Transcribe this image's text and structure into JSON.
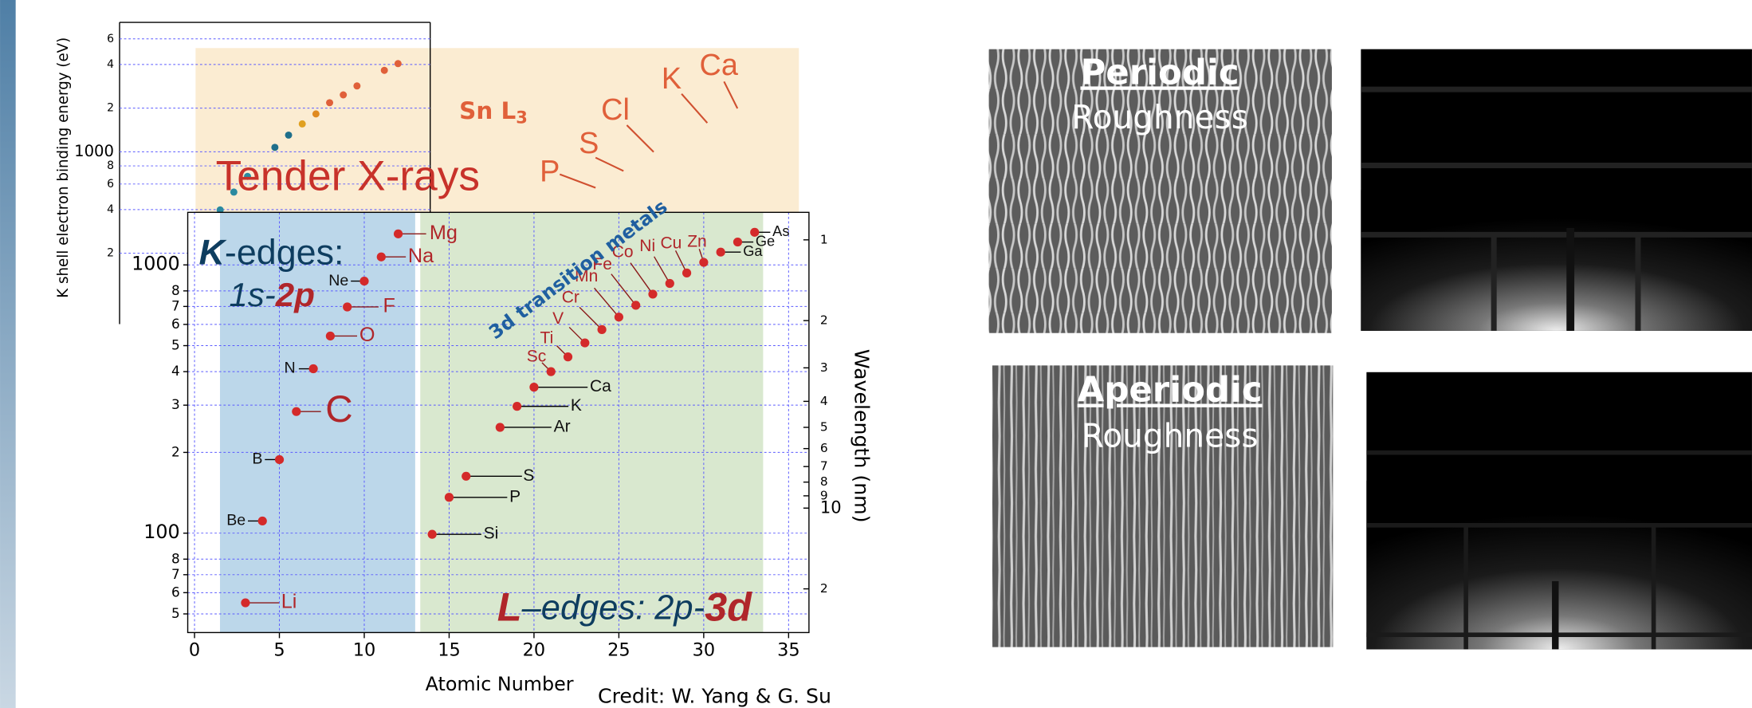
{
  "chart_data": [
    {
      "type": "scatter",
      "x_label": "Atomic Number",
      "y2_label": "Wavelength (nm)",
      "x": [
        3,
        4,
        5,
        6,
        7,
        8,
        9,
        10,
        11,
        12,
        14,
        15,
        16,
        18,
        19,
        20,
        21,
        22,
        23,
        24,
        25,
        26,
        27,
        28,
        29,
        30,
        31,
        32,
        33
      ],
      "values": [
        55,
        111,
        188,
        284,
        410,
        543,
        697,
        870,
        1071,
        1305,
        99,
        136,
        163,
        248,
        297,
        350,
        400,
        454,
        512,
        574,
        639,
        707,
        778,
        853,
        933,
        1022,
        1116,
        1217,
        1323
      ],
      "labels": [
        "Li",
        "Be",
        "B",
        "C",
        "N",
        "O",
        "F",
        "Ne",
        "Na",
        "Mg",
        "Si",
        "P",
        "S",
        "Ar",
        "K",
        "Ca",
        "Sc",
        "Ti",
        "V",
        "Cr",
        "Mn",
        "Fe",
        "Co",
        "Ni",
        "Cu",
        "Zn",
        "Ga",
        "Ge",
        "As"
      ],
      "color": "#d42a2a",
      "log_scale": true,
      "grid": true,
      "xlim": [
        -0.4,
        36.2
      ],
      "ylim": [
        42.6,
        1570
      ],
      "xticks": [
        0,
        5,
        10,
        15,
        20,
        25,
        30,
        35
      ],
      "yticks": [
        {
          "value": 50,
          "label": "5"
        },
        {
          "value": 60,
          "label": "6"
        },
        {
          "value": 70,
          "label": "7"
        },
        {
          "value": 80,
          "label": "8"
        },
        100,
        {
          "value": 200,
          "label": "2"
        },
        {
          "value": 300,
          "label": "3"
        },
        {
          "value": 400,
          "label": "4"
        },
        {
          "value": 500,
          "label": "5"
        },
        {
          "value": 600,
          "label": "6"
        },
        {
          "value": 700,
          "label": "7"
        },
        {
          "value": 800,
          "label": "8"
        },
        1000
      ],
      "y2ticks": [
        1,
        2,
        3,
        4,
        5,
        6,
        7,
        8,
        9,
        10,
        {
          "value": 20,
          "label": "2"
        }
      ],
      "annotations": {
        "k_edges": [
          "K",
          "-edges:"
        ],
        "k_transition": [
          "1s-",
          "2p"
        ],
        "l_edges": [
          "L",
          "–edges: 2p-",
          "3d"
        ],
        "transition_metals": "3d transition metals"
      }
    },
    {
      "type": "scatter",
      "y_label": "K shell electron binding energy (eV)",
      "x": [
        7,
        8,
        9,
        11,
        12,
        13,
        14,
        15,
        16,
        17,
        19,
        20
      ],
      "values": [
        398,
        528,
        677,
        1073,
        1304,
        1557,
        1825,
        2180,
        2468,
        2844,
        3643,
        4054
      ],
      "colors": [
        "#2a8aa0",
        "#2a8aa0",
        "#2a8aa0",
        "#1f6f8b",
        "#1f6f8b",
        "#e0a020",
        "#e08a20",
        "#e0603a",
        "#e0603a",
        "#e0603a",
        "#e0603a",
        "#e0603a"
      ],
      "log_scale": true,
      "grid": true,
      "xlim": [
        -0.35,
        22.35
      ],
      "ylim": [
        65,
        7800
      ],
      "yticks": [
        {
          "value": 200,
          "label": "2"
        },
        {
          "value": 400,
          "label": "4"
        },
        {
          "value": 600,
          "label": "6"
        },
        {
          "value": 800,
          "label": "8"
        },
        1000,
        {
          "value": 2000,
          "label": "2"
        },
        {
          "value": 4000,
          "label": "4"
        },
        {
          "value": 6000,
          "label": "6"
        }
      ],
      "annotations": {
        "tender": "Tender X-rays",
        "sn": [
          "Sn L",
          "3"
        ],
        "elements": [
          "P",
          "S",
          "Cl",
          "K",
          "Ca"
        ]
      }
    }
  ],
  "panels": [
    {
      "title": "Periodic",
      "subtitle": "Roughness"
    },
    {
      "title": "Aperiodic",
      "subtitle": "Roughness"
    }
  ],
  "credit": "Credit: W. Yang & G. Su"
}
